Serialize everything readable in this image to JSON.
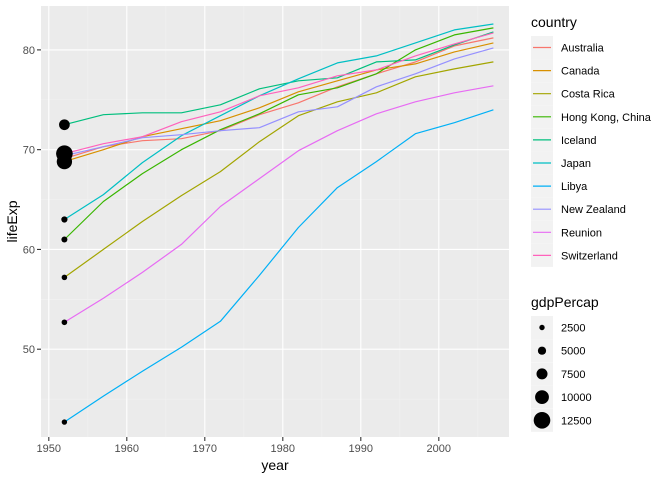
{
  "chart_data": {
    "type": "line",
    "xlabel": "year",
    "ylabel": "lifeExp",
    "xlim": [
      1949,
      2009
    ],
    "ylim": [
      41.2,
      84.4
    ],
    "x_ticks": [
      1950,
      1960,
      1970,
      1980,
      1990,
      2000
    ],
    "y_ticks": [
      50,
      60,
      70,
      80
    ],
    "grid": true,
    "legend_position": "right",
    "x": [
      1952,
      1957,
      1962,
      1967,
      1972,
      1977,
      1982,
      1987,
      1992,
      1997,
      2002,
      2007
    ],
    "color_legend": {
      "title": "country",
      "entries": [
        "Australia",
        "Canada",
        "Costa Rica",
        "Hong Kong, China",
        "Iceland",
        "Japan",
        "Libya",
        "New Zealand",
        "Reunion",
        "Switzerland"
      ]
    },
    "size_legend": {
      "title": "gdpPercap",
      "entries": [
        "2500",
        "5000",
        "7500",
        "10000",
        "12500"
      ],
      "values": [
        2500,
        5000,
        7500,
        10000,
        12500
      ]
    },
    "series": [
      {
        "name": "Australia",
        "color": "#F8766D",
        "values": [
          69.1,
          70.3,
          70.9,
          71.1,
          71.9,
          73.5,
          74.7,
          76.3,
          77.6,
          78.8,
          80.4,
          81.2
        ]
      },
      {
        "name": "Canada",
        "color": "#D89000",
        "values": [
          68.8,
          70.0,
          71.3,
          72.1,
          72.9,
          74.2,
          75.8,
          76.9,
          78.0,
          78.6,
          79.8,
          80.7
        ]
      },
      {
        "name": "Costa Rica",
        "color": "#A3A500",
        "values": [
          57.2,
          60.0,
          62.8,
          65.4,
          67.8,
          70.8,
          73.4,
          74.8,
          75.7,
          77.3,
          78.1,
          78.8
        ]
      },
      {
        "name": "Hong Kong, China",
        "color": "#39B600",
        "values": [
          61.0,
          64.8,
          67.6,
          70.0,
          72.0,
          73.6,
          75.5,
          76.2,
          77.6,
          80.0,
          81.5,
          82.2
        ]
      },
      {
        "name": "Iceland",
        "color": "#00BF7D",
        "values": [
          72.5,
          73.5,
          73.7,
          73.7,
          74.5,
          76.1,
          76.9,
          77.2,
          78.8,
          79.0,
          80.5,
          81.8
        ]
      },
      {
        "name": "Japan",
        "color": "#00BFC4",
        "values": [
          63.0,
          65.5,
          68.7,
          71.4,
          73.4,
          75.4,
          77.1,
          78.7,
          79.4,
          80.7,
          82.0,
          82.6
        ]
      },
      {
        "name": "Libya",
        "color": "#00B0F6",
        "values": [
          42.7,
          45.3,
          47.8,
          50.2,
          52.8,
          57.4,
          62.2,
          66.2,
          68.8,
          71.6,
          72.7,
          74.0
        ]
      },
      {
        "name": "New Zealand",
        "color": "#9590FF",
        "values": [
          69.4,
          70.3,
          71.2,
          71.5,
          71.9,
          72.2,
          73.8,
          74.3,
          76.3,
          77.6,
          79.1,
          80.2
        ]
      },
      {
        "name": "Reunion",
        "color": "#E76BF3",
        "values": [
          52.7,
          55.1,
          57.7,
          60.5,
          64.3,
          67.1,
          69.9,
          71.9,
          73.6,
          74.8,
          75.7,
          76.4
        ]
      },
      {
        "name": "Switzerland",
        "color": "#FF62BC",
        "values": [
          69.6,
          70.6,
          71.3,
          72.8,
          73.8,
          75.4,
          76.2,
          77.4,
          78.0,
          79.4,
          80.6,
          81.7
        ]
      }
    ],
    "points_1952": [
      {
        "country": "Australia",
        "lifeExp": 69.1,
        "gdpPercap": 10040
      },
      {
        "country": "Canada",
        "lifeExp": 68.8,
        "gdpPercap": 11367
      },
      {
        "country": "Costa Rica",
        "lifeExp": 57.2,
        "gdpPercap": 2627
      },
      {
        "country": "Hong Kong, China",
        "lifeExp": 61.0,
        "gdpPercap": 3054
      },
      {
        "country": "Iceland",
        "lifeExp": 72.5,
        "gdpPercap": 7268
      },
      {
        "country": "Japan",
        "lifeExp": 63.0,
        "gdpPercap": 3217
      },
      {
        "country": "Libya",
        "lifeExp": 42.7,
        "gdpPercap": 2388
      },
      {
        "country": "New Zealand",
        "lifeExp": 69.4,
        "gdpPercap": 10557
      },
      {
        "country": "Reunion",
        "lifeExp": 52.7,
        "gdpPercap": 2719
      },
      {
        "country": "Switzerland",
        "lifeExp": 69.6,
        "gdpPercap": 14734
      }
    ],
    "colors": {
      "panel": "#EBEBEB",
      "grid_major": "#FFFFFF",
      "grid_minor": "#F2F2F2",
      "point": "#000000"
    }
  }
}
